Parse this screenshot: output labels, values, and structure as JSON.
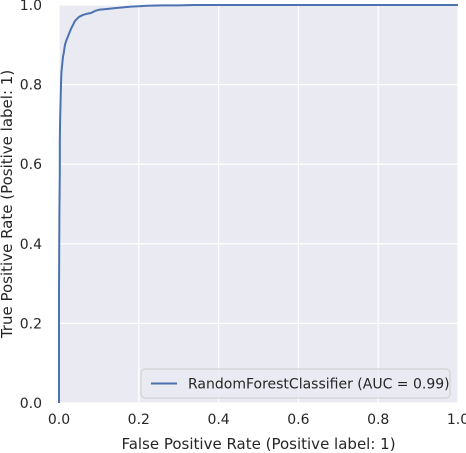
{
  "chart_data": {
    "type": "line",
    "title": "",
    "xlabel": "False Positive Rate (Positive label: 1)",
    "ylabel": "True Positive Rate (Positive label: 1)",
    "xlim": [
      0.0,
      1.0
    ],
    "ylim": [
      0.0,
      1.0
    ],
    "x_ticks": [
      "0.0",
      "0.2",
      "0.4",
      "0.6",
      "0.8",
      "1.0"
    ],
    "y_ticks": [
      "0.0",
      "0.2",
      "0.4",
      "0.6",
      "0.8",
      "1.0"
    ],
    "grid": true,
    "legend_position": "lower-right",
    "series": [
      {
        "name": "RandomForestClassifier (AUC = 0.99)",
        "color": "#4c72b0",
        "x": [
          0.0,
          0.0,
          0.001,
          0.002,
          0.002,
          0.003,
          0.004,
          0.005,
          0.006,
          0.008,
          0.01,
          0.012,
          0.015,
          0.018,
          0.022,
          0.026,
          0.03,
          0.035,
          0.04,
          0.045,
          0.05,
          0.06,
          0.07,
          0.08,
          0.09,
          0.1,
          0.12,
          0.14,
          0.16,
          0.18,
          0.2,
          0.22,
          0.26,
          0.3,
          0.34,
          0.4,
          0.5,
          0.6,
          0.8,
          1.0
        ],
        "y": [
          0.0,
          0.28,
          0.48,
          0.58,
          0.66,
          0.72,
          0.76,
          0.8,
          0.83,
          0.85,
          0.87,
          0.88,
          0.9,
          0.91,
          0.92,
          0.93,
          0.94,
          0.95,
          0.96,
          0.965,
          0.97,
          0.975,
          0.978,
          0.98,
          0.985,
          0.988,
          0.99,
          0.992,
          0.994,
          0.996,
          0.997,
          0.998,
          0.999,
          0.999,
          1.0,
          1.0,
          1.0,
          1.0,
          1.0,
          1.0
        ]
      }
    ]
  }
}
